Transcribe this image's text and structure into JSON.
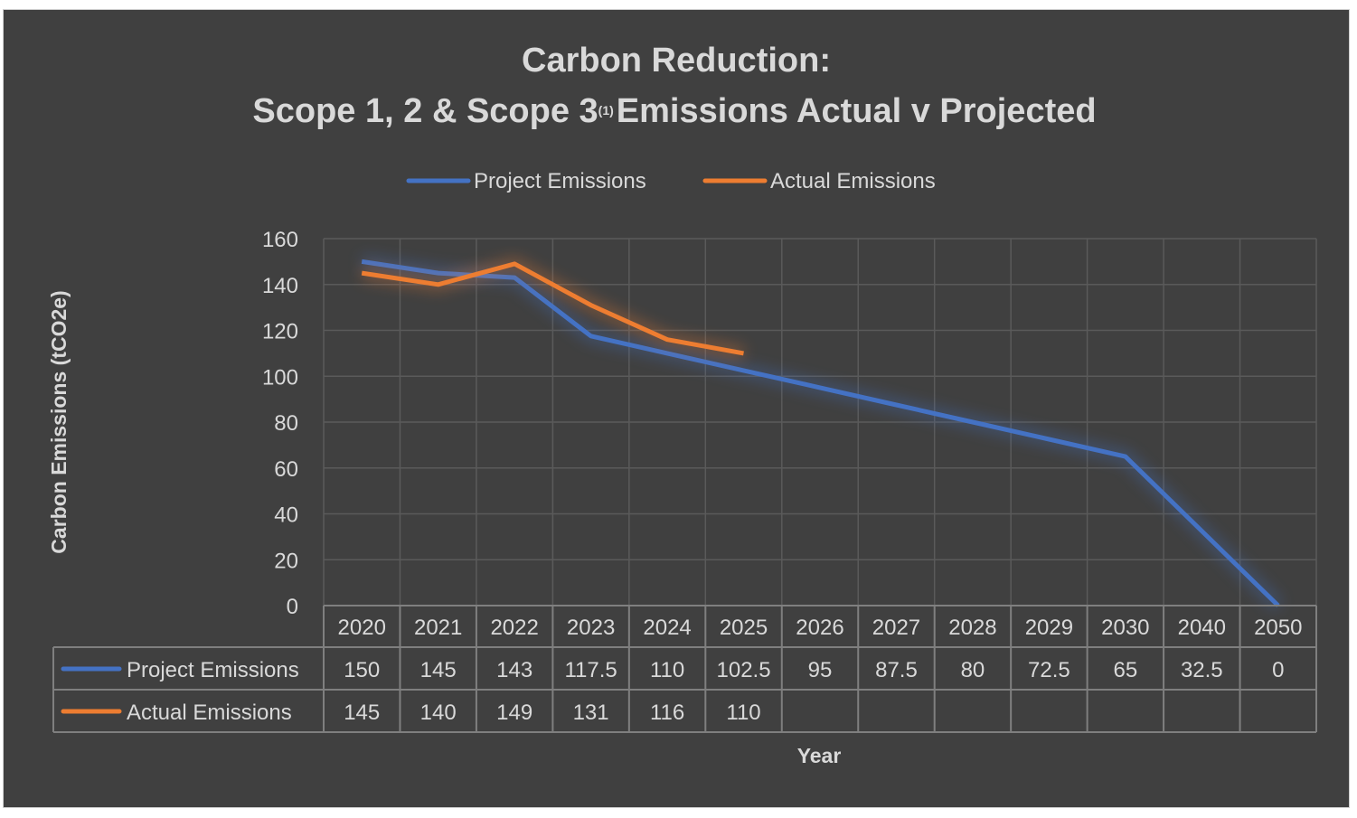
{
  "chart_data": {
    "type": "line",
    "title_line1": "Carbon Reduction:",
    "title_line2_a": "Scope 1, 2 & Scope 3",
    "title_superscript": "(1)",
    "title_line2_b": "Emissions Actual v Projected",
    "ylabel": "Carbon Emissions (tCO2e)",
    "xlabel": "Year",
    "ylim": [
      0,
      160
    ],
    "yticks": [
      "0",
      "20",
      "40",
      "60",
      "80",
      "100",
      "120",
      "140",
      "160"
    ],
    "grid": true,
    "legend_placement": "top",
    "data_table": true,
    "categories": [
      "2020",
      "2021",
      "2022",
      "2023",
      "2024",
      "2025",
      "2026",
      "2027",
      "2028",
      "2029",
      "2030",
      "2040",
      "2050"
    ],
    "series": [
      {
        "name": "Project Emissions",
        "color": "#4472c4",
        "values": [
          150,
          145,
          143,
          117.5,
          110,
          102.5,
          95,
          87.5,
          80,
          72.5,
          65,
          32.5,
          0
        ]
      },
      {
        "name": "Actual Emissions",
        "color": "#ed7d31",
        "values": [
          145,
          140,
          149,
          131,
          116,
          110,
          null,
          null,
          null,
          null,
          null,
          null,
          null
        ]
      }
    ]
  },
  "colors": {
    "background": "#404040",
    "grid": "#5a5a5a",
    "text": "#d9d9d9"
  }
}
